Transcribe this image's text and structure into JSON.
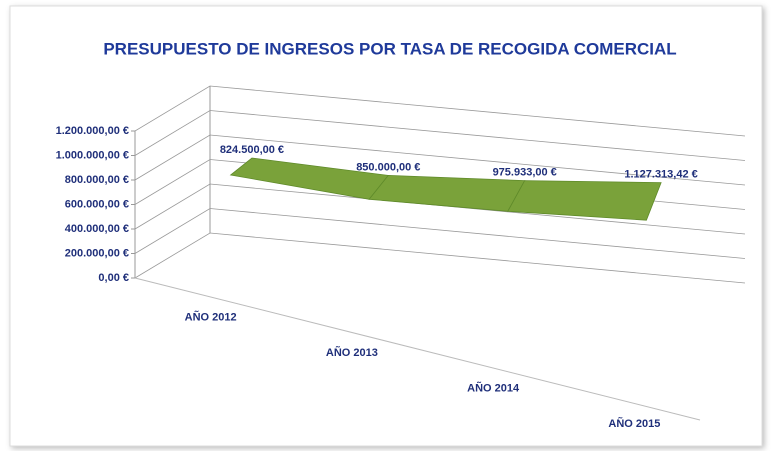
{
  "chart_data": {
    "type": "line3d",
    "title": "PRESUPUESTO DE INGRESOS POR TASA DE RECOGIDA COMERCIAL",
    "categories": [
      "AÑO 2012",
      "AÑO 2013",
      "AÑO 2014",
      "AÑO 2015"
    ],
    "values": [
      824500,
      850000,
      975933,
      1127313.42
    ],
    "value_labels": [
      "824.500,00 €",
      "850.000,00 €",
      "975.933,00 €",
      "1.127.313,42 €"
    ],
    "color": "#7aa23a",
    "ylim": [
      0,
      1200000
    ],
    "yticks": [
      {
        "value": 0,
        "label": "0,00 €"
      },
      {
        "value": 200000,
        "label": "200.000,00 €"
      },
      {
        "value": 400000,
        "label": "400.000,00 €"
      },
      {
        "value": 600000,
        "label": "600.000,00 €"
      },
      {
        "value": 800000,
        "label": "800.000,00 €"
      },
      {
        "value": 1000000,
        "label": "1.000.000,00 €"
      },
      {
        "value": 1200000,
        "label": "1.200.000,00 €"
      }
    ],
    "grid": true
  }
}
